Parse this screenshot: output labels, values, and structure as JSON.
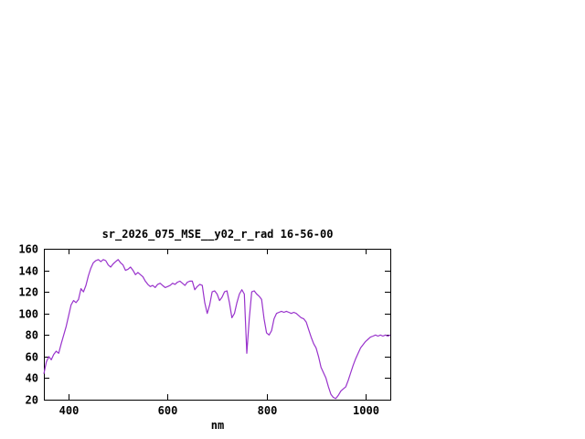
{
  "page": {
    "background": "#ffffff"
  },
  "chart_data": {
    "type": "line",
    "title": "sr_2026_075_MSE__y02_r_rad 16-56-00",
    "xlabel": "nm",
    "ylabel": "",
    "xlim": [
      350,
      1050
    ],
    "ylim": [
      20,
      160
    ],
    "xticks": [
      400,
      600,
      800,
      1000
    ],
    "yticks": [
      20,
      40,
      60,
      80,
      100,
      120,
      140,
      160
    ],
    "grid": false,
    "legend": "none",
    "line_color": "#9933cc",
    "axis_color": "#000000",
    "x": [
      350,
      355,
      360,
      365,
      370,
      375,
      380,
      385,
      390,
      395,
      400,
      405,
      410,
      415,
      420,
      425,
      430,
      435,
      440,
      445,
      450,
      455,
      460,
      465,
      470,
      475,
      480,
      485,
      490,
      495,
      500,
      505,
      510,
      515,
      520,
      525,
      530,
      535,
      540,
      545,
      550,
      555,
      560,
      565,
      570,
      575,
      580,
      585,
      590,
      595,
      600,
      605,
      610,
      615,
      620,
      625,
      630,
      635,
      640,
      645,
      650,
      655,
      660,
      665,
      670,
      675,
      680,
      685,
      690,
      695,
      700,
      705,
      710,
      715,
      720,
      725,
      730,
      735,
      740,
      745,
      750,
      755,
      760,
      765,
      770,
      775,
      780,
      785,
      790,
      795,
      800,
      805,
      810,
      815,
      820,
      825,
      830,
      835,
      840,
      845,
      850,
      855,
      860,
      865,
      870,
      875,
      880,
      885,
      890,
      895,
      900,
      905,
      910,
      915,
      920,
      925,
      930,
      935,
      940,
      945,
      950,
      955,
      960,
      965,
      970,
      975,
      980,
      985,
      990,
      995,
      1000,
      1005,
      1010,
      1015,
      1020,
      1025,
      1030,
      1035,
      1040,
      1045,
      1050
    ],
    "values": [
      44,
      55,
      60,
      57,
      62,
      65,
      63,
      72,
      80,
      88,
      98,
      108,
      112,
      110,
      113,
      123,
      120,
      126,
      135,
      142,
      147,
      149,
      150,
      148,
      150,
      149,
      145,
      143,
      146,
      148,
      150,
      147,
      145,
      140,
      141,
      143,
      140,
      136,
      138,
      136,
      134,
      130,
      127,
      125,
      126,
      124,
      127,
      128,
      126,
      124,
      125,
      126,
      128,
      127,
      129,
      130,
      128,
      126,
      129,
      130,
      130,
      122,
      125,
      127,
      126,
      110,
      100,
      108,
      120,
      121,
      118,
      112,
      115,
      120,
      121,
      110,
      96,
      100,
      110,
      118,
      122,
      118,
      63,
      95,
      120,
      121,
      118,
      116,
      113,
      95,
      82,
      80,
      84,
      95,
      100,
      101,
      102,
      101,
      102,
      101,
      100,
      101,
      100,
      98,
      96,
      95,
      92,
      85,
      78,
      72,
      68,
      60,
      50,
      45,
      40,
      32,
      25,
      22,
      21,
      24,
      28,
      30,
      32,
      38,
      45,
      52,
      58,
      63,
      68,
      71,
      74,
      76,
      78,
      79,
      80,
      79,
      80,
      79,
      80,
      79,
      80
    ]
  }
}
